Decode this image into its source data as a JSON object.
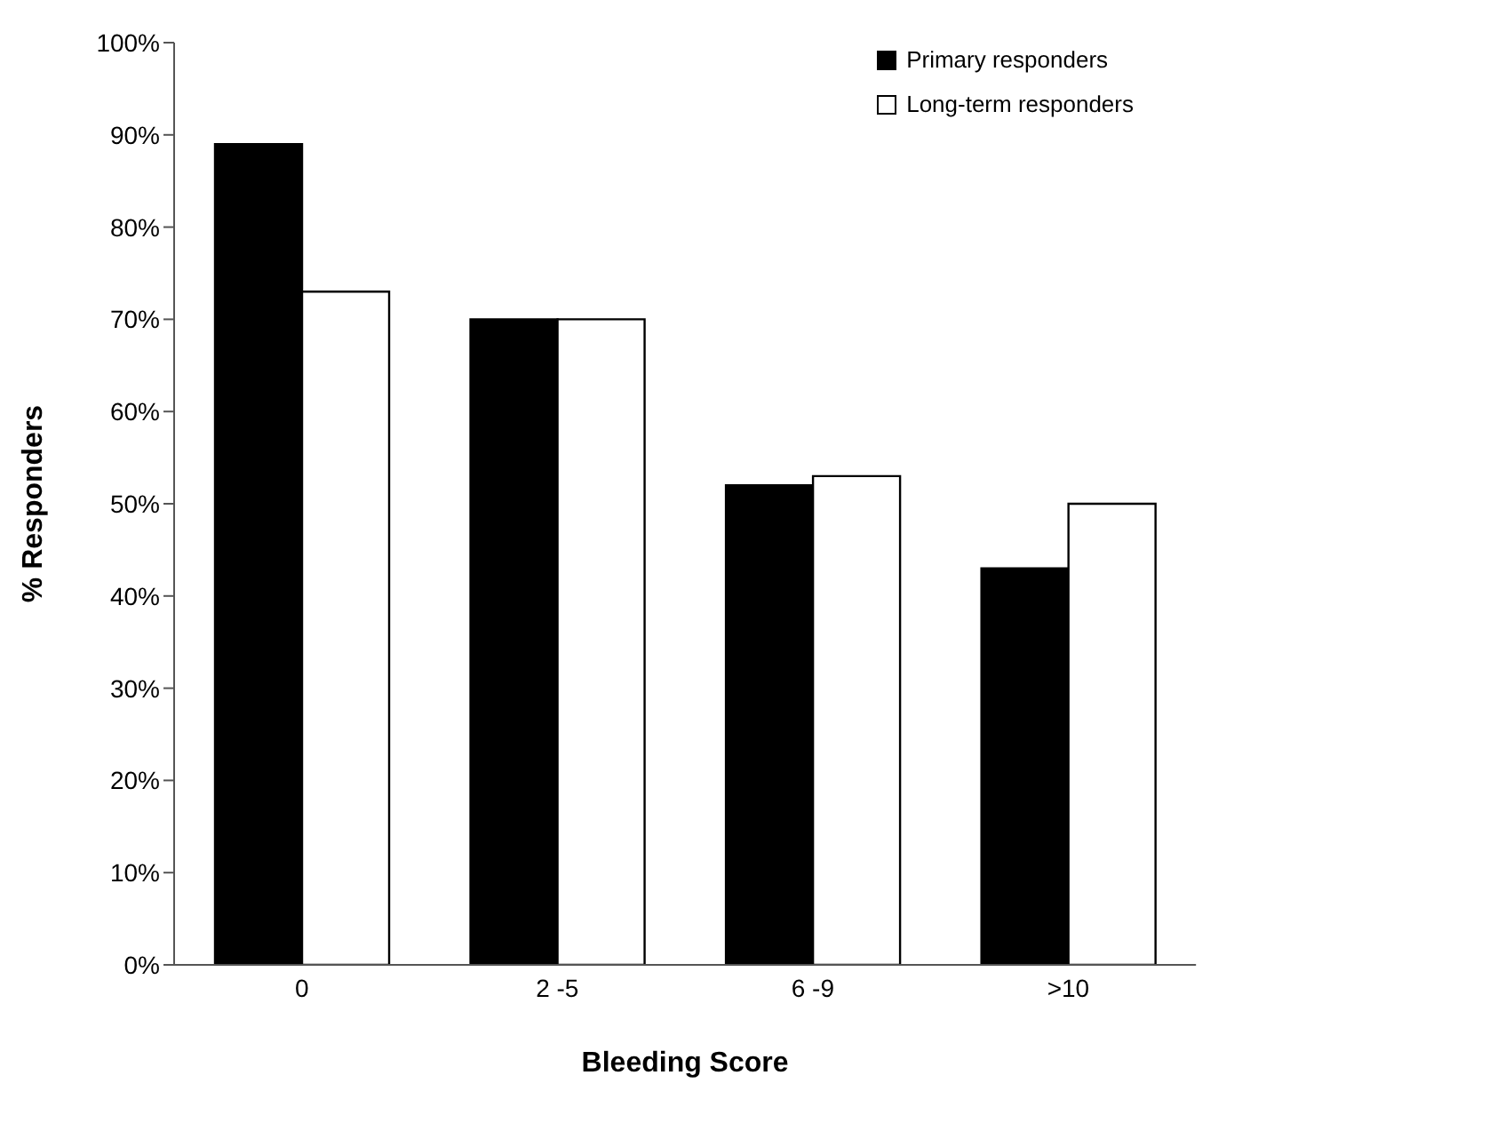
{
  "chart_data": {
    "type": "bar",
    "xlabel": "Bleeding Score",
    "ylabel": "% Responders",
    "categories": [
      "0",
      "2 -5",
      "6 -9",
      ">10"
    ],
    "series": [
      {
        "name": "Primary responders",
        "color": "#000000",
        "values": [
          89,
          70,
          52,
          43
        ]
      },
      {
        "name": "Long-term responders",
        "color": "#ffffff",
        "values": [
          73,
          70,
          53,
          50
        ]
      }
    ],
    "ylim": [
      0,
      100
    ],
    "yticks": [
      {
        "value": 0,
        "label": "0%"
      },
      {
        "value": 10,
        "label": "10%"
      },
      {
        "value": 20,
        "label": "20%"
      },
      {
        "value": 30,
        "label": "30%"
      },
      {
        "value": 40,
        "label": "40%"
      },
      {
        "value": 50,
        "label": "50%"
      },
      {
        "value": 60,
        "label": "60%"
      },
      {
        "value": 70,
        "label": "70%"
      },
      {
        "value": 80,
        "label": "80%"
      },
      {
        "value": 90,
        "label": "90%"
      },
      {
        "value": 100,
        "label": "100%"
      }
    ],
    "grid": false,
    "legend": "top right"
  }
}
